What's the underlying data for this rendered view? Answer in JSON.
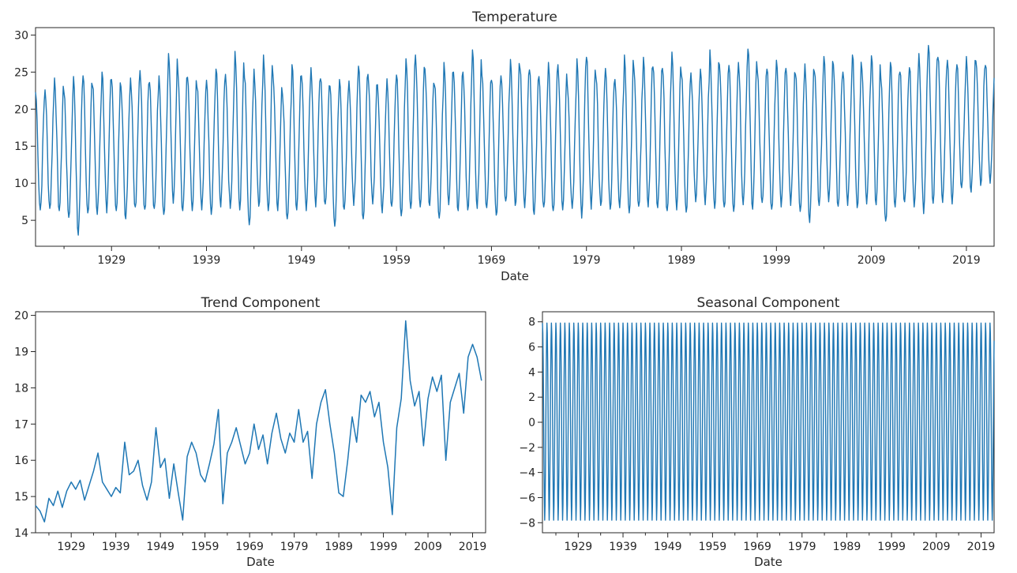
{
  "chart_data": [
    {
      "id": "temperature",
      "type": "line",
      "title": "Temperature",
      "xlabel": "Date",
      "ylabel": "",
      "x_range": [
        "1921-01",
        "2021-12"
      ],
      "ylim": [
        1.5,
        31
      ],
      "xticks": [
        "1929",
        "1939",
        "1949",
        "1959",
        "1969",
        "1979",
        "1989",
        "1999",
        "2009",
        "2019"
      ],
      "yticks": [
        5,
        10,
        15,
        20,
        25,
        30
      ],
      "grid": false,
      "color": "#1f77b4",
      "series": [
        {
          "x_start": "1921-01",
          "frequency": "monthly",
          "yearly_max": [
            22.3,
            22.6,
            24.2,
            22.2,
            24.4,
            24.5,
            23.1,
            25.0,
            24.0,
            23.0,
            24.2,
            25.2,
            23.6,
            24.5,
            27.5,
            24.8,
            24.3,
            22.9,
            23.9,
            25.4,
            24.7,
            27.8,
            24.2,
            25.4,
            27.3,
            24.6,
            22.0,
            26.0,
            24.5,
            25.6,
            24.1,
            23.1,
            24.0,
            23.8,
            25.8,
            24.7,
            23.3,
            24.1,
            24.6,
            26.8,
            27.3,
            25.4,
            23.2,
            26.3,
            25.0,
            25.0,
            28.0,
            24.5,
            23.9,
            24.5,
            26.7,
            25.5,
            25.3,
            24.4,
            26.3,
            26.0,
            23.0,
            26.8,
            27.0,
            24.3,
            25.5,
            24.0,
            27.3,
            25.4,
            27.0,
            25.7,
            25.5,
            27.7,
            24.6,
            24.9,
            25.4,
            28.0,
            26.0,
            25.9,
            26.3,
            28.1,
            25.0,
            25.4,
            26.6,
            25.5,
            24.7,
            26.1,
            25.0,
            27.1,
            26.0,
            25.0,
            27.3,
            25.4,
            27.2,
            24.0,
            26.3,
            25.0,
            25.6,
            27.5,
            28.6,
            27.0,
            26.6,
            26.0,
            27.1,
            26.5,
            25.9
          ],
          "yearly_min": [
            6.4,
            6.6,
            6.3,
            5.4,
            3.0,
            6.0,
            5.8,
            6.0,
            6.3,
            5.2,
            6.8,
            6.5,
            6.6,
            5.8,
            7.3,
            6.3,
            6.3,
            6.4,
            5.8,
            6.8,
            6.6,
            6.4,
            4.4,
            6.9,
            6.3,
            6.3,
            5.2,
            6.4,
            6.3,
            6.8,
            7.2,
            4.2,
            6.5,
            7.0,
            5.2,
            7.2,
            6.0,
            6.9,
            5.6,
            6.6,
            6.8,
            7.0,
            5.3,
            7.1,
            6.3,
            6.4,
            6.6,
            6.7,
            5.7,
            7.6,
            7.0,
            6.7,
            5.8,
            6.8,
            6.3,
            6.4,
            6.6,
            5.3,
            6.5,
            7.0,
            6.5,
            6.7,
            6.0,
            6.9,
            6.8,
            6.7,
            6.3,
            6.4,
            6.1,
            7.5,
            7.1,
            6.6,
            6.8,
            6.2,
            7.1,
            6.5,
            7.4,
            6.5,
            6.8,
            7.0,
            6.2,
            4.7,
            7.0,
            7.5,
            6.9,
            7.0,
            6.7,
            7.2,
            7.1,
            4.9,
            6.8,
            7.5,
            6.8,
            5.9,
            7.3,
            7.4,
            7.2,
            9.4,
            8.8,
            9.7,
            10.0
          ]
        }
      ]
    },
    {
      "id": "trend",
      "type": "line",
      "title": "Trend Component",
      "xlabel": "Date",
      "ylabel": "",
      "x_range": [
        "1921-01",
        "2021-12"
      ],
      "ylim": [
        14.0,
        20.1
      ],
      "xticks": [
        "1929",
        "1939",
        "1949",
        "1959",
        "1969",
        "1979",
        "1989",
        "1999",
        "2009",
        "2019"
      ],
      "yticks": [
        14,
        15,
        16,
        17,
        18,
        19,
        20
      ],
      "grid": false,
      "color": "#1f77b4",
      "series": [
        {
          "x": [
            "1921-01",
            "1922-01",
            "1923-01",
            "1924-01",
            "1925-01",
            "1926-01",
            "1927-01",
            "1928-01",
            "1929-01",
            "1930-01",
            "1931-01",
            "1932-01",
            "1933-01",
            "1934-01",
            "1935-01",
            "1936-01",
            "1937-01",
            "1938-01",
            "1939-01",
            "1940-01",
            "1941-01",
            "1942-01",
            "1943-01",
            "1944-01",
            "1945-01",
            "1946-01",
            "1947-01",
            "1948-01",
            "1949-01",
            "1950-01",
            "1951-01",
            "1952-01",
            "1953-01",
            "1954-01",
            "1955-01",
            "1956-01",
            "1957-01",
            "1958-01",
            "1959-01",
            "1960-01",
            "1961-01",
            "1962-01",
            "1963-01",
            "1964-01",
            "1965-01",
            "1966-01",
            "1967-01",
            "1968-01",
            "1969-01",
            "1970-01",
            "1971-01",
            "1972-01",
            "1973-01",
            "1974-01",
            "1975-01",
            "1976-01",
            "1977-01",
            "1978-01",
            "1979-01",
            "1980-01",
            "1981-01",
            "1982-01",
            "1983-01",
            "1984-01",
            "1985-01",
            "1986-01",
            "1987-01",
            "1988-01",
            "1989-01",
            "1990-01",
            "1991-01",
            "1992-01",
            "1993-01",
            "1994-01",
            "1995-01",
            "1996-01",
            "1997-01",
            "1998-01",
            "1999-01",
            "2000-01",
            "2001-01",
            "2002-01",
            "2003-01",
            "2004-01",
            "2005-01",
            "2006-01",
            "2007-01",
            "2008-01",
            "2009-01",
            "2010-01",
            "2011-01",
            "2012-01",
            "2013-01",
            "2014-01",
            "2015-01",
            "2016-01",
            "2017-01",
            "2018-01",
            "2019-01",
            "2020-01",
            "2021-01"
          ],
          "values": [
            14.75,
            14.6,
            14.3,
            14.95,
            14.75,
            15.15,
            14.7,
            15.15,
            15.4,
            15.2,
            15.45,
            14.9,
            15.3,
            15.7,
            16.2,
            15.4,
            15.2,
            15.0,
            15.25,
            15.1,
            16.5,
            15.6,
            15.7,
            16.0,
            15.3,
            14.9,
            15.4,
            16.9,
            15.8,
            16.05,
            14.95,
            15.9,
            15.1,
            14.35,
            16.1,
            16.5,
            16.2,
            15.6,
            15.4,
            15.9,
            16.45,
            17.4,
            14.8,
            16.2,
            16.5,
            16.9,
            16.4,
            15.9,
            16.2,
            17.0,
            16.3,
            16.7,
            15.9,
            16.75,
            17.3,
            16.6,
            16.2,
            16.75,
            16.5,
            17.4,
            16.5,
            16.8,
            15.5,
            17.0,
            17.6,
            17.95,
            17.0,
            16.2,
            15.1,
            15.0,
            16.0,
            17.2,
            16.5,
            17.8,
            17.6,
            17.9,
            17.2,
            17.6,
            16.5,
            15.8,
            14.5,
            16.9,
            17.7,
            19.85,
            18.2,
            17.5,
            17.9,
            16.4,
            17.7,
            18.3,
            17.9,
            18.35,
            16.0,
            17.6,
            18.0,
            18.4,
            17.3,
            18.85,
            19.2,
            18.85,
            18.2
          ]
        }
      ]
    },
    {
      "id": "seasonal",
      "type": "line",
      "title": "Seasonal Component",
      "xlabel": "Date",
      "ylabel": "",
      "x_range": [
        "1921-01",
        "2021-12"
      ],
      "ylim": [
        -8.8,
        8.8
      ],
      "xticks": [
        "1929",
        "1939",
        "1949",
        "1959",
        "1969",
        "1979",
        "1989",
        "1999",
        "2009",
        "2019"
      ],
      "yticks": [
        -8,
        -6,
        -4,
        -2,
        0,
        2,
        4,
        6,
        8
      ],
      "grid": false,
      "color": "#1f77b4",
      "series": [
        {
          "x_start": "1921-01",
          "frequency": "monthly",
          "period_months": 12,
          "monthly_pattern": [
            7.9,
            7.1,
            4.9,
            1.2,
            -2.9,
            -6.1,
            -7.8,
            -6.6,
            -3.9,
            -0.2,
            3.6,
            6.5
          ]
        }
      ]
    }
  ]
}
